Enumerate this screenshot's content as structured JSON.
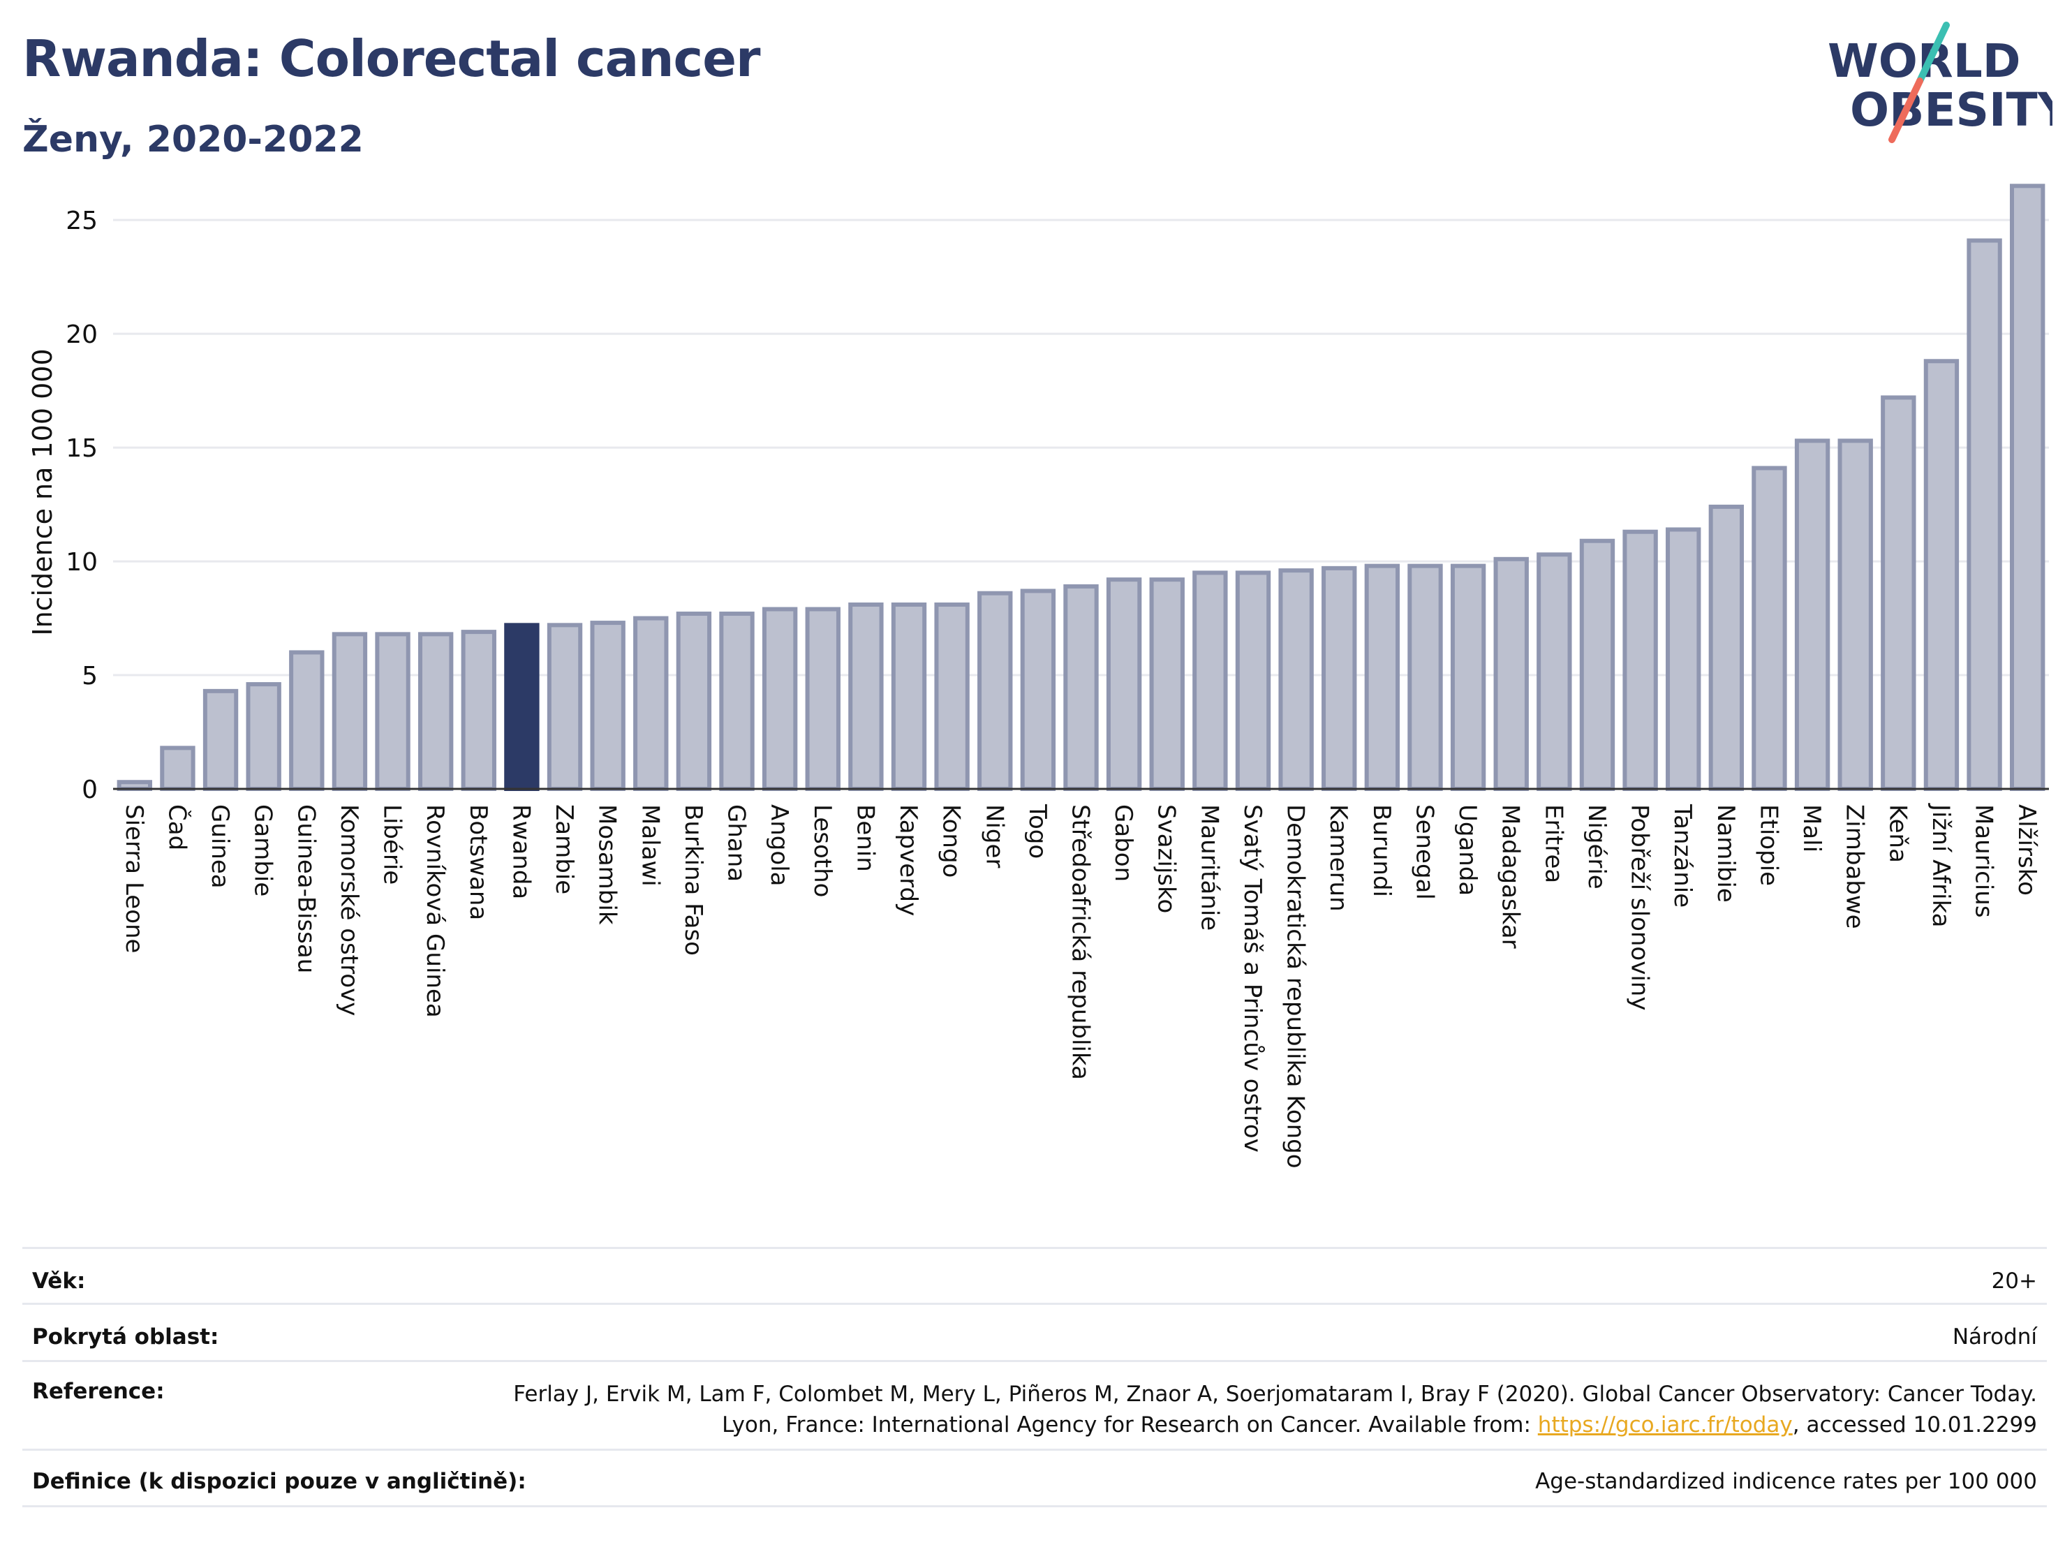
{
  "header": {
    "title": "Rwanda: Colorectal cancer",
    "subtitle": "Ženy, 2020-2022"
  },
  "logo": {
    "line1": "WORLD",
    "line2": "OBESITY"
  },
  "chart_data": {
    "type": "bar",
    "ylabel": "Incidence na 100 000",
    "xlabel": "",
    "ylim": [
      0,
      27
    ],
    "yticks": [
      0,
      5,
      10,
      15,
      20,
      25
    ],
    "grid": true,
    "highlight": "Rwanda",
    "colors": {
      "bar": "#bcc0cf",
      "bar_edge": "#8f96b0",
      "highlight": "#2c3a66",
      "grid": "#e8e9ee",
      "axis": "#333333"
    },
    "categories": [
      "Sierra Leone",
      "Čad",
      "Guinea",
      "Gambie",
      "Guinea-Bissau",
      "Komorské ostrovy",
      "Libérie",
      "Rovníková Guinea",
      "Botswana",
      "Rwanda",
      "Zambie",
      "Mosambik",
      "Malawi",
      "Burkina Faso",
      "Ghana",
      "Angola",
      "Lesotho",
      "Benin",
      "Kapverdy",
      "Kongo",
      "Niger",
      "Togo",
      "Středoafrická republika",
      "Gabon",
      "Svazijsko",
      "Mauritánie",
      "Svatý Tomáš a Princův ostrov",
      "Demokratická republika Kongo",
      "Kamerun",
      "Burundi",
      "Senegal",
      "Uganda",
      "Madagaskar",
      "Eritrea",
      "Nigérie",
      "Pobřeží slonoviny",
      "Tanzánie",
      "Namibie",
      "Etiopie",
      "Mali",
      "Zimbabwe",
      "Keňa",
      "Jižní Afrika",
      "Mauricius",
      "Alžírsko"
    ],
    "values": [
      0.3,
      1.8,
      4.3,
      4.6,
      6.0,
      6.8,
      6.8,
      6.8,
      6.9,
      7.2,
      7.2,
      7.3,
      7.5,
      7.7,
      7.7,
      7.9,
      7.9,
      8.1,
      8.1,
      8.1,
      8.6,
      8.7,
      8.9,
      9.2,
      9.2,
      9.5,
      9.5,
      9.6,
      9.7,
      9.8,
      9.8,
      9.8,
      10.1,
      10.3,
      10.9,
      11.3,
      11.4,
      12.4,
      14.1,
      15.3,
      15.3,
      17.2,
      18.8,
      24.1,
      26.5
    ]
  },
  "footer": {
    "rows": [
      {
        "label": "Věk:",
        "value": "20+"
      },
      {
        "label": "Pokrytá oblast:",
        "value": "Národní"
      },
      {
        "label": "Reference:",
        "value_pre": "Ferlay J, Ervik M, Lam F, Colombet M, Mery L, Piñeros M, Znaor A, Soerjomataram I, Bray F (2020). Global Cancer Observatory: Cancer Today. Lyon, France: International Agency for Research on Cancer. Available from: ",
        "link": "https://gco.iarc.fr/today",
        "value_post": ", accessed 10.01.2299"
      },
      {
        "label": "Definice (k dispozici pouze v angličtině):",
        "value": "Age-standardized indicence rates per 100 000"
      }
    ]
  }
}
